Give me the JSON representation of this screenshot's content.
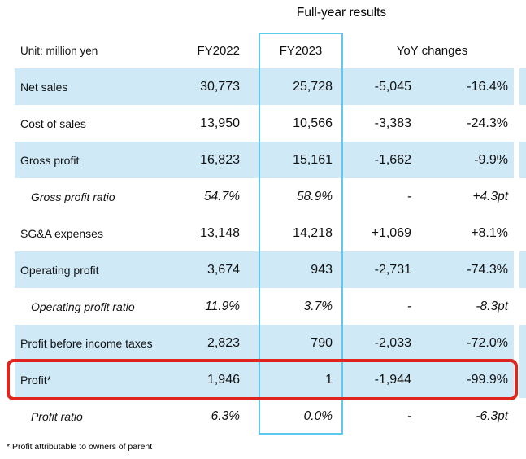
{
  "title": "Full-year results",
  "header": {
    "unit": "Unit: million yen",
    "fy2022": "FY2022",
    "fy2023": "FY2023",
    "yoy": "YoY changes"
  },
  "rows": [
    {
      "label": "Net sales",
      "fy2022": "30,773",
      "fy2023": "25,728",
      "yoy_abs": "-5,045",
      "yoy_pct": "-16.4%"
    },
    {
      "label": "Cost of sales",
      "fy2022": "13,950",
      "fy2023": "10,566",
      "yoy_abs": "-3,383",
      "yoy_pct": "-24.3%"
    },
    {
      "label": "Gross profit",
      "fy2022": "16,823",
      "fy2023": "15,161",
      "yoy_abs": "-1,662",
      "yoy_pct": "-9.9%"
    },
    {
      "label": "Gross profit ratio",
      "fy2022": "54.7%",
      "fy2023": "58.9%",
      "yoy_abs": "-",
      "yoy_pct": "+4.3pt"
    },
    {
      "label": "SG&A expenses",
      "fy2022": "13,148",
      "fy2023": "14,218",
      "yoy_abs": "+1,069",
      "yoy_pct": "+8.1%"
    },
    {
      "label": "Operating profit",
      "fy2022": "3,674",
      "fy2023": "943",
      "yoy_abs": "-2,731",
      "yoy_pct": "-74.3%"
    },
    {
      "label": "Operating profit ratio",
      "fy2022": "11.9%",
      "fy2023": "3.7%",
      "yoy_abs": "-",
      "yoy_pct": "-8.3pt"
    },
    {
      "label": "Profit before income taxes",
      "fy2022": "2,823",
      "fy2023": "790",
      "yoy_abs": "-2,033",
      "yoy_pct": "-72.0%"
    },
    {
      "label": "Profit*",
      "fy2022": "1,946",
      "fy2023": "1",
      "yoy_abs": "-1,944",
      "yoy_pct": "-99.9%"
    },
    {
      "label": "Profit ratio",
      "fy2022": "6.3%",
      "fy2023": "0.0%",
      "yoy_abs": "-",
      "yoy_pct": "-6.3pt"
    }
  ],
  "footnote": "* Profit attributable to owners of parent",
  "colors": {
    "row_highlight": "#cfe9f7",
    "fy2023_box_border": "#5fc8ef",
    "profit_box_border": "#e0251c"
  }
}
